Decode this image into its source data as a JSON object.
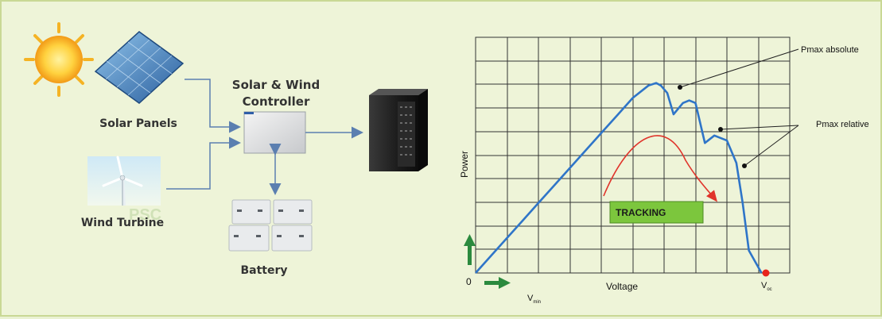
{
  "system": {
    "solar_panels": "Solar Panels",
    "wind_turbine": "Wind Turbine",
    "controller_line1": "Solar & Wind",
    "controller_line2": "Controller",
    "battery": "Battery",
    "watermark": "PSC"
  },
  "chart": {
    "ylabel": "Power",
    "xlabel": "Voltage",
    "origin": "0",
    "vmin_main": "V",
    "vmin_sub": "min",
    "voc_main": "V",
    "voc_sub": "oc",
    "pmax_absolute": "Pmax absolute",
    "pmax_relative": "Pmax relative",
    "tracking": "TRACKING"
  },
  "colors": {
    "curve": "#2f75c8",
    "tracking_arrow": "#e0342b",
    "tracking_box": "#7cc63d",
    "axis_arrow": "#2b8a3e",
    "connector": "#5b7fb0"
  },
  "chart_data": {
    "type": "line",
    "xlabel": "Voltage",
    "ylabel": "Power",
    "series": [
      {
        "x": [
          0,
          0.5,
          1,
          1.5,
          2,
          2.5,
          3,
          3.5,
          4,
          4.5,
          5,
          5.5,
          5.75,
          5.9,
          6.1,
          6.3,
          6.6,
          6.8,
          7.0,
          7.3,
          7.6,
          8.0,
          8.3,
          8.5,
          8.7,
          9.1
        ],
        "values": [
          0,
          0.7,
          1.4,
          2.1,
          2.8,
          3.5,
          4.2,
          4.9,
          5.6,
          6.3,
          7.0,
          7.5,
          7.6,
          7.5,
          7.2,
          6.35,
          6.8,
          6.9,
          6.8,
          5.2,
          5.5,
          5.3,
          4.4,
          2.8,
          0.9,
          0
        ]
      }
    ]
  }
}
